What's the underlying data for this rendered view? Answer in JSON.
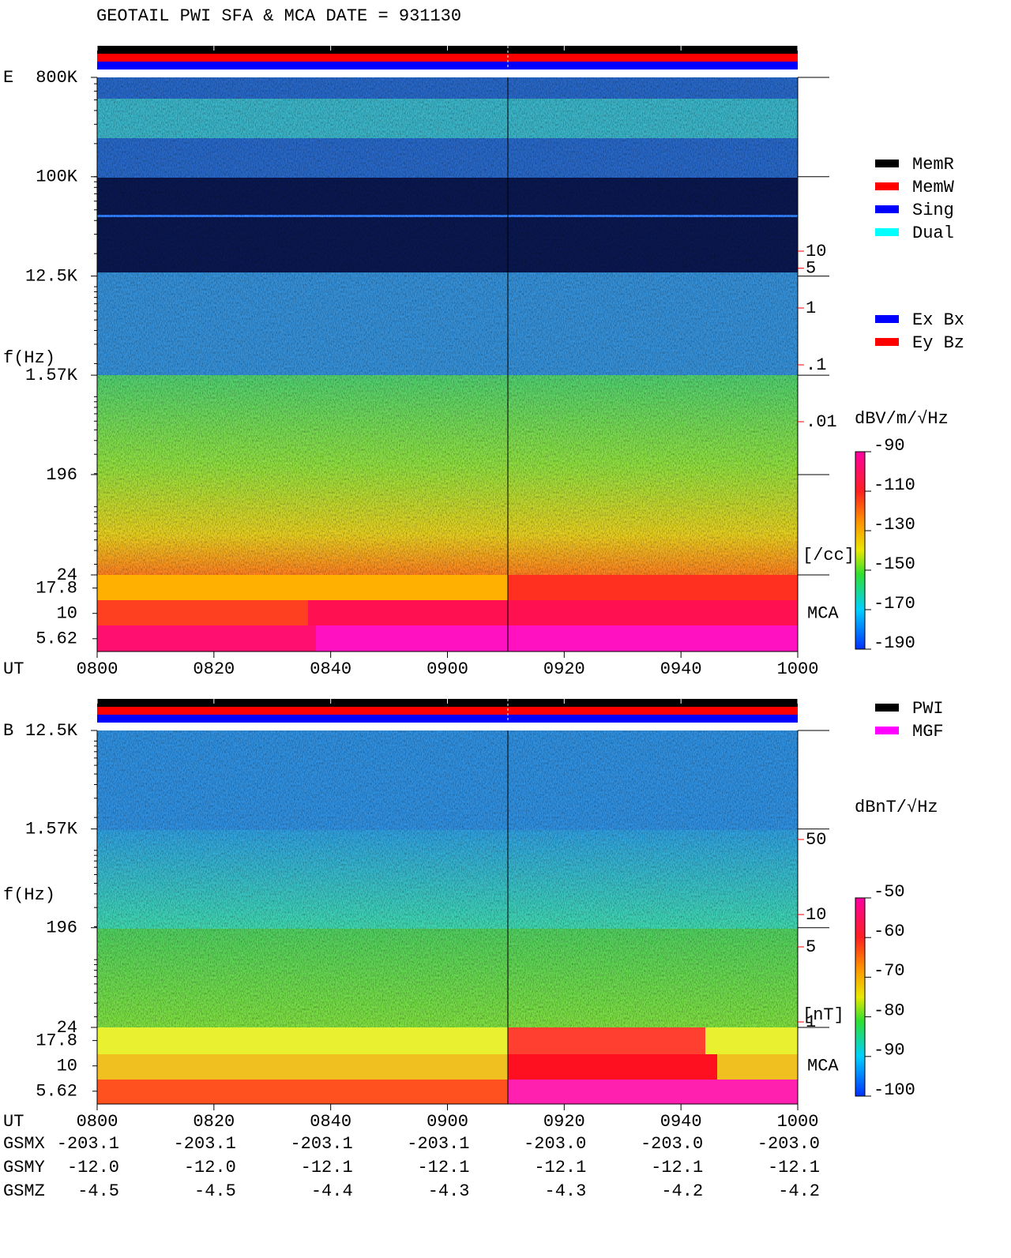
{
  "title": "GEOTAIL  PWI SFA & MCA   DATE = 931130",
  "panels": [
    {
      "label": "E",
      "ylabel": "f(Hz)",
      "yscale": "log",
      "ylim": [
        24,
        800000
      ],
      "yticks": [
        {
          "value": 800000,
          "label": "800K"
        },
        {
          "value": 100000,
          "label": "100K"
        },
        {
          "value": 12500,
          "label": "12.5K"
        },
        {
          "value": 1570,
          "label": "1.57K"
        },
        196,
        24
      ],
      "mca_label": "MCA",
      "mca_ylim": [
        4.2,
        24
      ],
      "mca_yticks": [
        17.8,
        10,
        5.62
      ],
      "xlabel": "UT",
      "xticks": [
        "0800",
        "0820",
        "0840",
        "0900",
        "0920",
        "0940",
        "1000"
      ],
      "right_scale": {
        "scale": "log",
        "unit": "[/cc]",
        "color": "#ff0000",
        "ticks": [
          10,
          5,
          1,
          {
            "value": 0.1,
            "label": ".1"
          },
          {
            "value": 0.01,
            "label": ".01"
          }
        ]
      },
      "colorbar": {
        "unit": "dBV/m/√Hz",
        "clim": [
          -190,
          -90
        ],
        "ticks": [
          -90,
          -110,
          -130,
          -150,
          -170,
          -190
        ]
      },
      "legend": [
        {
          "name": "MemR",
          "color": "#000000"
        },
        {
          "name": "MemW",
          "color": "#ff0000"
        },
        {
          "name": "Sing",
          "color": "#0000ff"
        },
        {
          "name": "Dual",
          "color": "#00ffff"
        }
      ],
      "legend2": [
        {
          "name": "Ex Bx",
          "color": "#0000ff"
        },
        {
          "name": "Ey Bz",
          "color": "#ff0000"
        }
      ]
    },
    {
      "label": "B",
      "ylabel": "f(Hz)",
      "yscale": "log",
      "ylim": [
        24,
        12500
      ],
      "yticks": [
        {
          "value": 12500,
          "label": "12.5K"
        },
        {
          "value": 1570,
          "label": "1.57K"
        },
        196,
        24
      ],
      "mca_label": "MCA",
      "mca_ylim": [
        4.2,
        24
      ],
      "mca_yticks": [
        17.8,
        10,
        5.62
      ],
      "xlabel": "UT",
      "xticks": [
        "0800",
        "0820",
        "0840",
        "0900",
        "0920",
        "0940",
        "1000"
      ],
      "right_scale": {
        "scale": "log",
        "unit": "[nT]",
        "color": "#ff0000",
        "ticks": [
          50,
          10,
          5,
          1
        ]
      },
      "colorbar": {
        "unit": "dBnT/√Hz",
        "clim": [
          -100,
          -50
        ],
        "ticks": [
          -50,
          -60,
          -70,
          -80,
          -90,
          -100
        ]
      },
      "legend": [
        {
          "name": "PWI",
          "color": "#000000"
        },
        {
          "name": "MGF",
          "color": "#ff00ff"
        }
      ]
    }
  ],
  "orbit": {
    "rows": [
      {
        "name": "GSMX",
        "values": [
          "-203.1",
          "-203.1",
          "-203.1",
          "-203.1",
          "-203.0",
          "-203.0",
          "-203.0"
        ]
      },
      {
        "name": "GSMY",
        "values": [
          "-12.0",
          "-12.0",
          "-12.1",
          "-12.1",
          "-12.1",
          "-12.1",
          "-12.1"
        ]
      },
      {
        "name": "GSMZ",
        "values": [
          "-4.5",
          "-4.5",
          "-4.4",
          "-4.3",
          "-4.3",
          "-4.2",
          "-4.2"
        ]
      }
    ]
  }
}
